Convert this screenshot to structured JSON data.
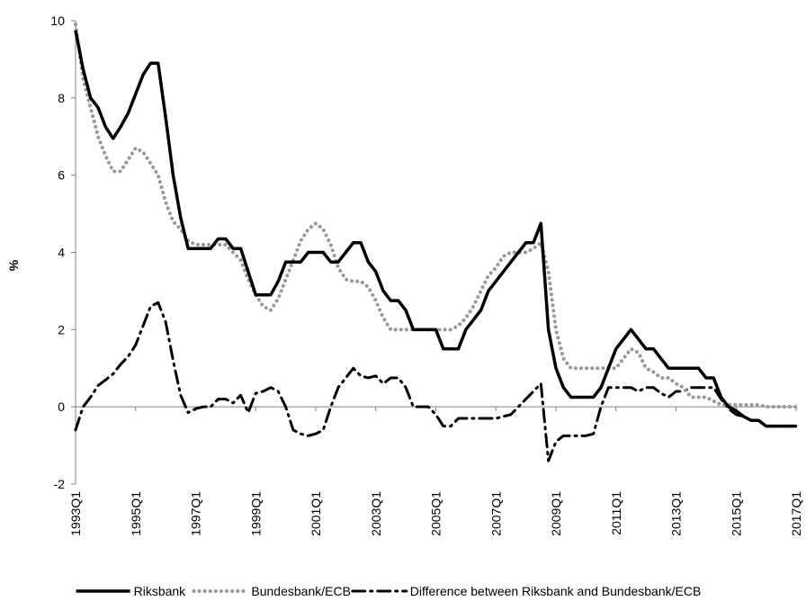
{
  "chart_data": {
    "type": "line",
    "y_label": "%",
    "categories": [
      "1993Q1",
      null,
      null,
      null,
      null,
      null,
      null,
      null,
      "1995Q1",
      null,
      null,
      null,
      null,
      null,
      null,
      null,
      "1997Q1",
      null,
      null,
      null,
      null,
      null,
      null,
      null,
      "1999Q1",
      null,
      null,
      null,
      null,
      null,
      null,
      null,
      "2001Q1",
      null,
      null,
      null,
      null,
      null,
      null,
      null,
      "2003Q1",
      null,
      null,
      null,
      null,
      null,
      null,
      null,
      "2005Q1",
      null,
      null,
      null,
      null,
      null,
      null,
      null,
      "2007Q1",
      null,
      null,
      null,
      null,
      null,
      null,
      null,
      "2009Q1",
      null,
      null,
      null,
      null,
      null,
      null,
      null,
      "2011Q1",
      null,
      null,
      null,
      null,
      null,
      null,
      null,
      "2013Q1",
      null,
      null,
      null,
      null,
      null,
      null,
      null,
      "2015Q1",
      null,
      null,
      null,
      null,
      null,
      null,
      null,
      "2017Q1"
    ],
    "series": [
      {
        "name": "Riksbank",
        "color": "#000000",
        "dash": "solid",
        "values": [
          9.75,
          8.75,
          8.0,
          7.75,
          7.25,
          6.95,
          7.25,
          7.6,
          8.1,
          8.6,
          8.9,
          8.9,
          7.5,
          6.0,
          4.9,
          4.1,
          4.1,
          4.1,
          4.1,
          4.35,
          4.35,
          4.1,
          4.1,
          3.5,
          2.9,
          2.9,
          2.9,
          3.25,
          3.75,
          3.75,
          3.75,
          4.0,
          4.0,
          4.0,
          3.75,
          3.75,
          4.0,
          4.25,
          4.25,
          3.75,
          3.5,
          3.0,
          2.75,
          2.75,
          2.5,
          2.0,
          2.0,
          2.0,
          2.0,
          1.5,
          1.5,
          1.5,
          2.0,
          2.25,
          2.5,
          3.0,
          3.25,
          3.5,
          3.75,
          4.0,
          4.25,
          4.25,
          4.75,
          2.0,
          1.0,
          0.5,
          0.25,
          0.25,
          0.25,
          0.25,
          0.5,
          1.0,
          1.5,
          1.75,
          2.0,
          1.75,
          1.5,
          1.5,
          1.25,
          1.0,
          1.0,
          1.0,
          1.0,
          1.0,
          0.75,
          0.75,
          0.25,
          0.0,
          -0.1,
          -0.25,
          -0.35,
          -0.35,
          -0.5,
          -0.5,
          -0.5,
          -0.5,
          -0.5
        ]
      },
      {
        "name": "Bundesbank/ECB",
        "color": "#999999",
        "dash": "dotted",
        "values": [
          9.9,
          8.5,
          7.75,
          7.0,
          6.5,
          6.1,
          6.1,
          6.4,
          6.7,
          6.6,
          6.3,
          6.0,
          5.3,
          4.8,
          4.6,
          4.3,
          4.2,
          4.2,
          4.2,
          4.2,
          4.2,
          4.0,
          3.8,
          3.3,
          2.9,
          2.6,
          2.5,
          2.8,
          3.3,
          3.8,
          4.3,
          4.6,
          4.75,
          4.6,
          4.2,
          3.6,
          3.3,
          3.25,
          3.25,
          3.1,
          2.75,
          2.3,
          2.0,
          2.0,
          2.0,
          2.0,
          2.0,
          2.0,
          2.0,
          2.0,
          2.0,
          2.1,
          2.3,
          2.6,
          3.0,
          3.4,
          3.6,
          3.9,
          4.0,
          4.0,
          4.0,
          4.1,
          4.25,
          3.5,
          2.0,
          1.25,
          1.0,
          1.0,
          1.0,
          1.0,
          1.0,
          1.0,
          1.0,
          1.25,
          1.5,
          1.4,
          1.0,
          0.9,
          0.75,
          0.75,
          0.6,
          0.5,
          0.25,
          0.25,
          0.25,
          0.15,
          0.05,
          0.05,
          0.05,
          0.05,
          0.05,
          0.05,
          0.0,
          0.0,
          0.0,
          0.0,
          0.0
        ]
      },
      {
        "name": "Difference between Riksbank and Bundesbank/ECB",
        "color": "#000000",
        "dash": "dashdot",
        "values": [
          -0.6,
          0.0,
          0.25,
          0.55,
          0.7,
          0.85,
          1.1,
          1.3,
          1.6,
          2.1,
          2.6,
          2.7,
          2.2,
          1.2,
          0.3,
          -0.15,
          -0.05,
          0.0,
          0.0,
          0.2,
          0.2,
          0.1,
          0.3,
          -0.15,
          0.35,
          0.4,
          0.5,
          0.4,
          0.0,
          -0.6,
          -0.7,
          -0.75,
          -0.7,
          -0.6,
          0.0,
          0.5,
          0.75,
          1.0,
          0.8,
          0.75,
          0.8,
          0.6,
          0.75,
          0.75,
          0.5,
          0.0,
          0.0,
          0.0,
          -0.2,
          -0.5,
          -0.5,
          -0.3,
          -0.3,
          -0.3,
          -0.3,
          -0.3,
          -0.3,
          -0.25,
          -0.2,
          0.0,
          0.2,
          0.4,
          0.6,
          -1.4,
          -0.9,
          -0.75,
          -0.75,
          -0.75,
          -0.75,
          -0.7,
          0.0,
          0.5,
          0.5,
          0.5,
          0.5,
          0.4,
          0.5,
          0.5,
          0.35,
          0.25,
          0.4,
          0.4,
          0.5,
          0.5,
          0.5,
          0.5,
          0.2,
          -0.05,
          -0.2,
          -0.25,
          -0.35,
          -0.35,
          -0.5,
          -0.5,
          -0.5,
          -0.5,
          -0.5
        ]
      }
    ],
    "ylim": [
      -2,
      10
    ],
    "yticks": [
      -2,
      0,
      2,
      4,
      6,
      8,
      10
    ],
    "grid": false,
    "legend": "bottom"
  }
}
